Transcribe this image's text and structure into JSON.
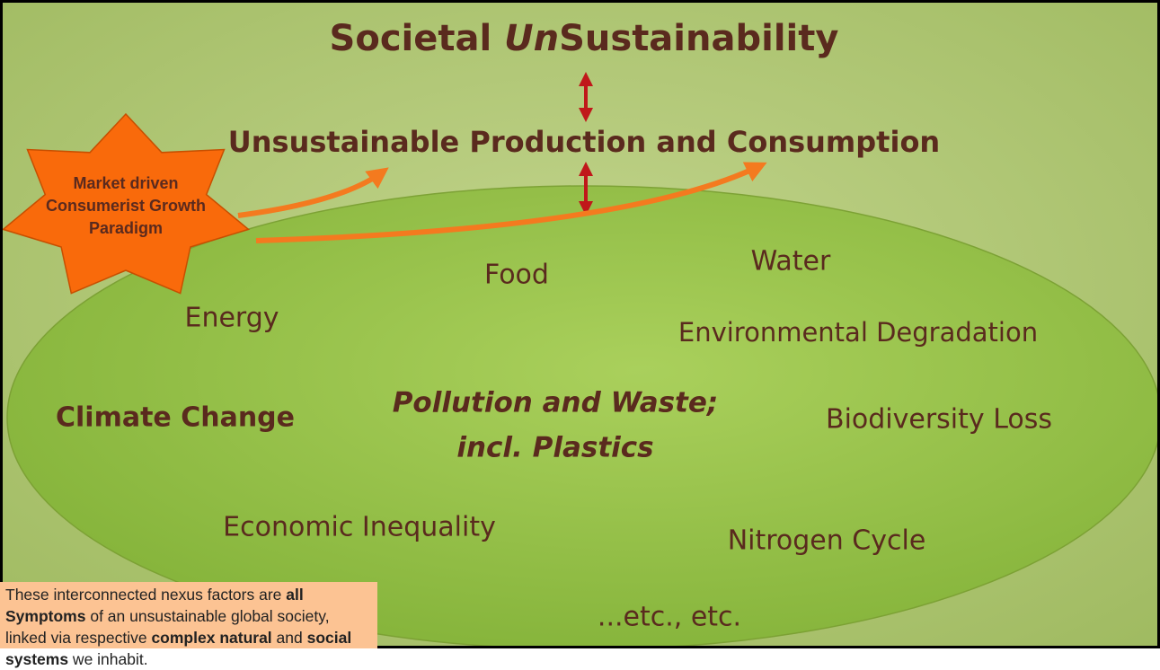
{
  "title": {
    "before": "Societal ",
    "italic": "Un",
    "after": "Sustainability"
  },
  "subtitle": "Unsustainable Production and Consumption",
  "driver": {
    "lines": [
      "Market driven",
      "Consumerist Growth",
      "Paradigm"
    ]
  },
  "factors": [
    {
      "label": "Food"
    },
    {
      "label": "Water"
    },
    {
      "label": "Energy"
    },
    {
      "label": "Environmental Degradation"
    },
    {
      "label": "Climate Change"
    },
    {
      "label": "Pollution and Waste;"
    },
    {
      "label": "incl. Plastics"
    },
    {
      "label": "Biodiversity Loss"
    },
    {
      "label": "Economic Inequality"
    },
    {
      "label": "Nitrogen Cycle"
    },
    {
      "label": "...etc., etc."
    }
  ],
  "note": {
    "parts": [
      "These interconnected nexus factors are ",
      "all Symptoms",
      " of an unsustainable global society, linked via respective ",
      "complex natural",
      " and ",
      "social systems",
      " we inhabit."
    ]
  }
}
